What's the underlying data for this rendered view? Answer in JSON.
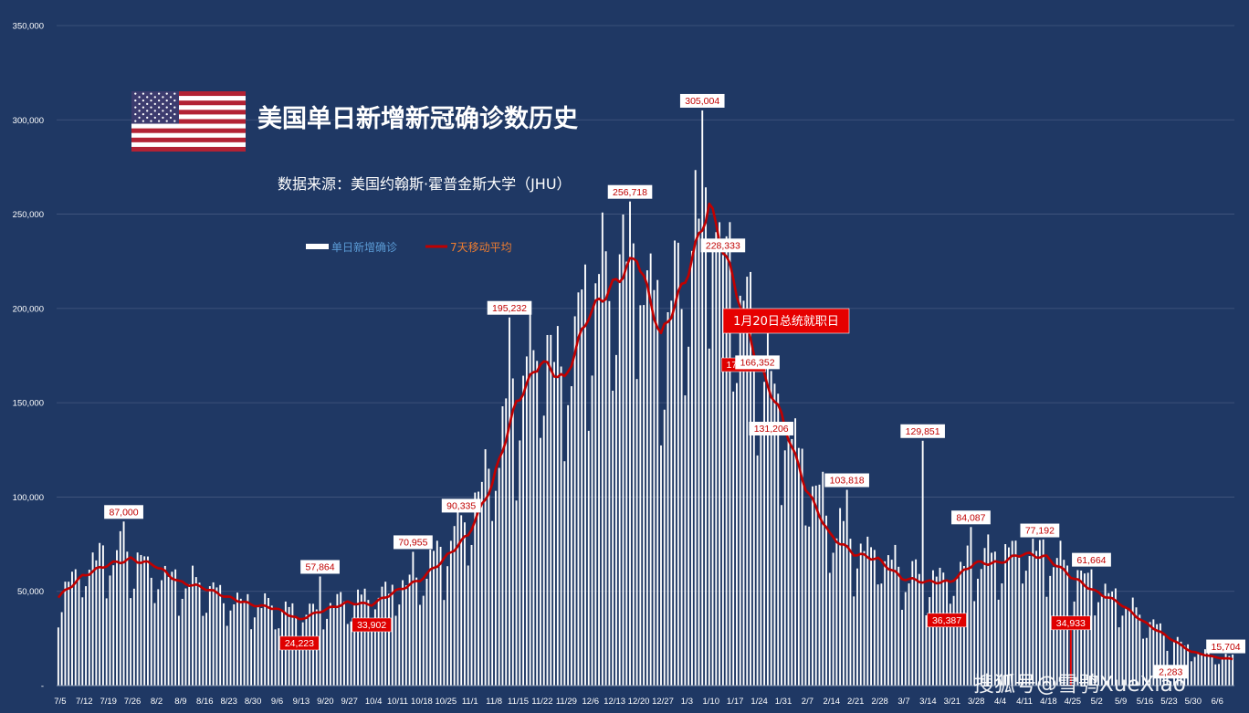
{
  "colors": {
    "background": "#1f3864",
    "bar": "#ffffff",
    "line": "#c00000",
    "grid": "#44597f",
    "legend_bar_text": "#5b9bd5",
    "legend_line_text": "#ed7d31",
    "label_box_white": "#ffffff",
    "label_text_red": "#c00000",
    "label_box_red": "#e00000",
    "annotation_box": "#e60000"
  },
  "header": {
    "flag": "us-flag",
    "title": "美国单日新增新冠确诊数历史",
    "source": "数据来源：美国约翰斯·霍普金斯大学（JHU）"
  },
  "watermark": "搜狐号@雪鸮XueXiao",
  "chart_data": {
    "type": "bar",
    "title": "美国单日新增新冠确诊数历史",
    "subtitle": "数据来源：美国约翰斯·霍普金斯大学（JHU）",
    "ylim": [
      0,
      350000
    ],
    "yticks": [
      0,
      50000,
      100000,
      150000,
      200000,
      250000,
      300000,
      350000
    ],
    "ytick_labels": [
      "-",
      "50,000",
      "100,000",
      "150,000",
      "200,000",
      "250,000",
      "300,000",
      "350,000"
    ],
    "grid": true,
    "legend_position": "top-left",
    "x_start": "2020-07-05",
    "x_end": "2021-06-11",
    "x_tick_labels": [
      "7/5",
      "7/12",
      "7/19",
      "7/26",
      "8/2",
      "8/9",
      "8/16",
      "8/23",
      "8/30",
      "9/6",
      "9/13",
      "9/20",
      "9/27",
      "10/4",
      "10/11",
      "10/18",
      "10/25",
      "11/1",
      "11/8",
      "11/15",
      "11/22",
      "11/29",
      "12/6",
      "12/13",
      "12/20",
      "12/27",
      "1/3",
      "1/10",
      "1/17",
      "1/24",
      "1/31",
      "2/7",
      "2/14",
      "2/21",
      "2/28",
      "3/7",
      "3/14",
      "3/21",
      "3/28",
      "4/4",
      "4/11",
      "4/18",
      "4/25",
      "5/2",
      "5/9",
      "5/16",
      "5/23",
      "5/30",
      "6/6"
    ],
    "series": [
      {
        "name": "单日新增确诊",
        "type": "bar",
        "keypoints": [
          [
            "2020-07-05",
            45000
          ],
          [
            "2020-07-12",
            60000
          ],
          [
            "2020-07-19",
            67000
          ],
          [
            "2020-07-26",
            66000
          ],
          [
            "2020-08-02",
            58000
          ],
          [
            "2020-08-09",
            53000
          ],
          [
            "2020-08-16",
            51000
          ],
          [
            "2020-08-23",
            44000
          ],
          [
            "2020-08-30",
            42000
          ],
          [
            "2020-09-06",
            40000
          ],
          [
            "2020-09-13",
            36000
          ],
          [
            "2020-09-20",
            41000
          ],
          [
            "2020-09-27",
            43000
          ],
          [
            "2020-10-04",
            44000
          ],
          [
            "2020-10-11",
            50000
          ],
          [
            "2020-10-18",
            56000
          ],
          [
            "2020-10-25",
            70000
          ],
          [
            "2020-11-01",
            85000
          ],
          [
            "2020-11-08",
            115000
          ],
          [
            "2020-11-15",
            150000
          ],
          [
            "2020-11-22",
            175000
          ],
          [
            "2020-11-29",
            160000
          ],
          [
            "2020-12-06",
            200000
          ],
          [
            "2020-12-13",
            210000
          ],
          [
            "2020-12-20",
            225000
          ],
          [
            "2020-12-27",
            180000
          ],
          [
            "2021-01-03",
            210000
          ],
          [
            "2021-01-10",
            255000
          ],
          [
            "2021-01-17",
            210000
          ],
          [
            "2021-01-24",
            170000
          ],
          [
            "2021-01-31",
            140000
          ],
          [
            "2021-02-07",
            110000
          ],
          [
            "2021-02-14",
            85000
          ],
          [
            "2021-02-21",
            70000
          ],
          [
            "2021-02-28",
            68000
          ],
          [
            "2021-03-07",
            58000
          ],
          [
            "2021-03-14",
            55000
          ],
          [
            "2021-03-21",
            55000
          ],
          [
            "2021-03-28",
            65000
          ],
          [
            "2021-04-04",
            66000
          ],
          [
            "2021-04-11",
            70000
          ],
          [
            "2021-04-18",
            68000
          ],
          [
            "2021-04-25",
            58000
          ],
          [
            "2021-05-02",
            50000
          ],
          [
            "2021-05-09",
            44000
          ],
          [
            "2021-05-16",
            34000
          ],
          [
            "2021-05-23",
            26000
          ],
          [
            "2021-05-30",
            18000
          ],
          [
            "2021-06-06",
            15000
          ],
          [
            "2021-06-11",
            14000
          ]
        ],
        "peaks": [
          [
            "2020-07-24",
            87000
          ],
          [
            "2020-09-19",
            57864
          ],
          [
            "2020-10-16",
            70955
          ],
          [
            "2020-10-30",
            90335
          ],
          [
            "2020-11-13",
            195232
          ],
          [
            "2020-12-18",
            256718
          ],
          [
            "2021-01-08",
            305004
          ],
          [
            "2021-01-14",
            228333
          ],
          [
            "2021-02-19",
            103818
          ],
          [
            "2021-03-13",
            129851
          ],
          [
            "2021-03-27",
            84087
          ],
          [
            "2021-04-16",
            77192
          ],
          [
            "2021-05-01",
            61664
          ]
        ],
        "troughs": [
          [
            "2021-04-25",
            34933
          ],
          [
            "2021-05-24",
            2283
          ]
        ]
      },
      {
        "name": "7天移动平均",
        "type": "line",
        "keypoints": [
          [
            "2020-07-05",
            47000
          ],
          [
            "2020-07-12",
            58000
          ],
          [
            "2020-07-19",
            64000
          ],
          [
            "2020-07-26",
            67000
          ],
          [
            "2020-08-02",
            64000
          ],
          [
            "2020-08-09",
            55000
          ],
          [
            "2020-08-16",
            52000
          ],
          [
            "2020-08-23",
            47000
          ],
          [
            "2020-08-30",
            43000
          ],
          [
            "2020-09-06",
            41000
          ],
          [
            "2020-09-13",
            35000
          ],
          [
            "2020-09-20",
            40000
          ],
          [
            "2020-09-27",
            44000
          ],
          [
            "2020-10-04",
            43000
          ],
          [
            "2020-10-11",
            50000
          ],
          [
            "2020-10-18",
            56000
          ],
          [
            "2020-10-25",
            67000
          ],
          [
            "2020-11-01",
            80000
          ],
          [
            "2020-11-08",
            107000
          ],
          [
            "2020-11-15",
            150000
          ],
          [
            "2020-11-22",
            172000
          ],
          [
            "2020-11-29",
            162000
          ],
          [
            "2020-12-06",
            197000
          ],
          [
            "2020-12-13",
            212000
          ],
          [
            "2020-12-20",
            228000
          ],
          [
            "2020-12-27",
            185000
          ],
          [
            "2021-01-03",
            215000
          ],
          [
            "2021-01-10",
            255000
          ],
          [
            "2021-01-17",
            215000
          ],
          [
            "2021-01-24",
            171831
          ],
          [
            "2021-01-31",
            143000
          ],
          [
            "2021-02-07",
            105000
          ],
          [
            "2021-02-14",
            80000
          ],
          [
            "2021-02-21",
            70000
          ],
          [
            "2021-02-28",
            67000
          ],
          [
            "2021-03-07",
            57000
          ],
          [
            "2021-03-14",
            55000
          ],
          [
            "2021-03-21",
            55000
          ],
          [
            "2021-03-28",
            65000
          ],
          [
            "2021-04-04",
            65000
          ],
          [
            "2021-04-11",
            70000
          ],
          [
            "2021-04-18",
            68000
          ],
          [
            "2021-04-25",
            58000
          ],
          [
            "2021-05-02",
            50000
          ],
          [
            "2021-05-09",
            44000
          ],
          [
            "2021-05-16",
            34000
          ],
          [
            "2021-05-23",
            26000
          ],
          [
            "2021-05-30",
            18000
          ],
          [
            "2021-06-06",
            15000
          ],
          [
            "2021-06-11",
            14000
          ]
        ]
      }
    ],
    "data_labels": [
      {
        "text": "87,000",
        "date": "2020-07-24",
        "value": 87000,
        "style": "white-box"
      },
      {
        "text": "24,223",
        "date": "2020-09-13",
        "value": 24223,
        "style": "red-box"
      },
      {
        "text": "57,864",
        "date": "2020-09-19",
        "value": 57864,
        "style": "white-box"
      },
      {
        "text": "33,902",
        "date": "2020-10-04",
        "value": 33902,
        "style": "red-box"
      },
      {
        "text": "70,955",
        "date": "2020-10-16",
        "value": 70955,
        "style": "white-box"
      },
      {
        "text": "90,335",
        "date": "2020-10-30",
        "value": 90335,
        "style": "white-box"
      },
      {
        "text": "195,232",
        "date": "2020-11-13",
        "value": 195232,
        "style": "white-box"
      },
      {
        "text": "256,718",
        "date": "2020-12-18",
        "value": 256718,
        "style": "white-box"
      },
      {
        "text": "305,004",
        "date": "2021-01-08",
        "value": 305004,
        "style": "white-box"
      },
      {
        "text": "228,333",
        "date": "2021-01-14",
        "value": 228333,
        "style": "white-box"
      },
      {
        "text": "171,831",
        "date": "2021-01-20",
        "value": 171831,
        "style": "red-box"
      },
      {
        "text": "166,352",
        "date": "2021-01-24",
        "value": 166352,
        "style": "white-box"
      },
      {
        "text": "131,206",
        "date": "2021-01-28",
        "value": 131206,
        "style": "white-box"
      },
      {
        "text": "103,818",
        "date": "2021-02-19",
        "value": 103818,
        "style": "white-box"
      },
      {
        "text": "129,851",
        "date": "2021-03-13",
        "value": 129851,
        "style": "white-box"
      },
      {
        "text": "36,387",
        "date": "2021-03-20",
        "value": 36387,
        "style": "red-box"
      },
      {
        "text": "84,087",
        "date": "2021-03-27",
        "value": 84087,
        "style": "white-box"
      },
      {
        "text": "77,192",
        "date": "2021-04-16",
        "value": 77192,
        "style": "white-box"
      },
      {
        "text": "34,933",
        "date": "2021-04-25",
        "value": 34933,
        "style": "red-box"
      },
      {
        "text": "61,664",
        "date": "2021-05-01",
        "value": 61664,
        "style": "white-box"
      },
      {
        "text": "2,283",
        "date": "2021-05-24",
        "value": 2283,
        "style": "white-box"
      },
      {
        "text": "15,704",
        "date": "2021-06-11",
        "value": 15704,
        "style": "white-box"
      }
    ],
    "annotations": [
      {
        "text": "1月20日总统就职日",
        "date": "2021-01-20",
        "value": 197000
      }
    ]
  }
}
